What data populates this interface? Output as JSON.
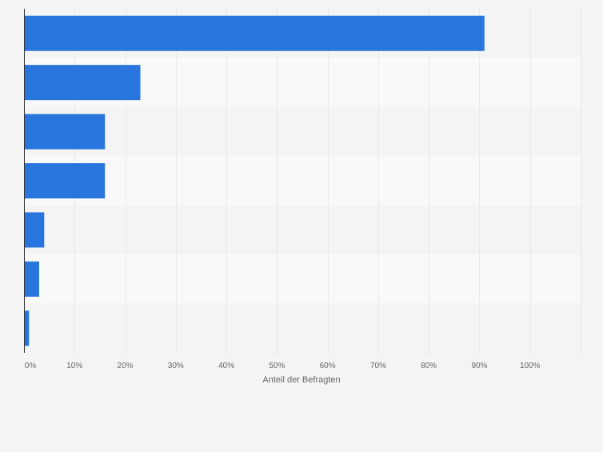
{
  "chart_data": {
    "type": "bar",
    "orientation": "horizontal",
    "categories": [
      "",
      "",
      "",
      "",
      "",
      "",
      ""
    ],
    "values": [
      91,
      23,
      16,
      16,
      4,
      3,
      1
    ],
    "xlabel": "Anteil der Befragten",
    "ylabel": "",
    "xlim": [
      0,
      110
    ],
    "x_ticks": [
      0,
      10,
      20,
      30,
      40,
      50,
      60,
      70,
      80,
      90,
      100
    ],
    "x_tick_labels": [
      "0%",
      "10%",
      "20%",
      "30%",
      "40%",
      "50%",
      "60%",
      "70%",
      "80%",
      "90%",
      "100%"
    ],
    "grid": "vertical",
    "legend": "none",
    "colors": {
      "bar": "#2876dd",
      "band_light": "#f9f9f9",
      "band_dark": "#f4f4f4",
      "grid": "#dcdcdc",
      "axis": "#333333",
      "tick_text": "#666666"
    }
  }
}
